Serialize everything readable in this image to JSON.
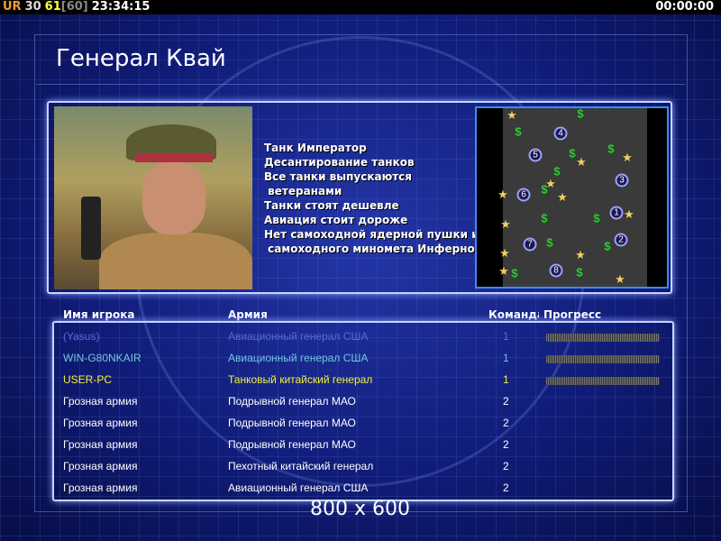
{
  "status_bar": {
    "ur": "UR",
    "fps": "30",
    "current": "61",
    "max": "[60]",
    "clock": "23:34:15",
    "timer": "00:00:00"
  },
  "general": {
    "title": "Генерал Квай",
    "traits": [
      "Танк Император",
      "Десантирование танков",
      "Все танки выпускаются",
      " ветеранами",
      "Танки стоят дешевле",
      "Авиация стоит дороже",
      "Нет самоходной ядерной пушки и",
      " самоходного миномета Инферно"
    ]
  },
  "map": {
    "start_positions": [
      "1",
      "2",
      "3",
      "4",
      "5",
      "6",
      "7",
      "8"
    ],
    "icons": [
      "star-icon",
      "dollar-icon",
      "start-position-marker"
    ]
  },
  "table": {
    "headers": {
      "player": "Имя игрока",
      "army": "Армия",
      "team": "Команда",
      "progress": "Прогресс"
    },
    "rows": [
      {
        "player": "(Yasus)",
        "army": "Авиационный генерал США",
        "team": "1",
        "progress": 100,
        "color": "#5a6ad8"
      },
      {
        "player": "WIN-G80NKAIR",
        "army": "Авиационный генерал США",
        "team": "1",
        "progress": 100,
        "color": "#70c8e0"
      },
      {
        "player": "USER-PC",
        "army": "Танковый китайский генерал",
        "team": "1",
        "progress": 100,
        "color": "#f0f040"
      },
      {
        "player": "Грозная армия",
        "army": "Подрывной генерал МАО",
        "team": "2",
        "color": "#ffffff"
      },
      {
        "player": "Грозная армия",
        "army": "Подрывной генерал МАО",
        "team": "2",
        "color": "#ffffff"
      },
      {
        "player": "Грозная армия",
        "army": "Подрывной генерал МАО",
        "team": "2",
        "color": "#ffffff"
      },
      {
        "player": "Грозная армия",
        "army": "Пехотный китайский генерал",
        "team": "2",
        "color": "#ffffff"
      },
      {
        "player": "Грозная армия",
        "army": "Авиационный генерал США",
        "team": "2",
        "color": "#ffffff"
      }
    ]
  },
  "resolution": "800 x 600"
}
